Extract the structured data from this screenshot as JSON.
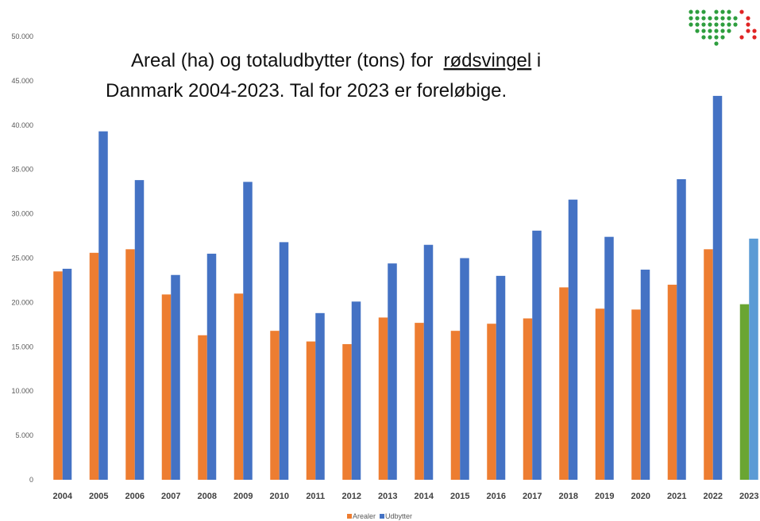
{
  "chart_data": {
    "type": "bar",
    "title": [
      "Areal (ha) og totaludbytter (tons) for  ",
      "rødsvingel",
      " i",
      "Danmark 2004-2023. Tal for 2023 er foreløbige."
    ],
    "categories": [
      "2004",
      "2005",
      "2006",
      "2007",
      "2008",
      "2009",
      "2010",
      "2011",
      "2012",
      "2013",
      "2014",
      "2015",
      "2016",
      "2017",
      "2018",
      "2019",
      "2020",
      "2021",
      "2022",
      "2023"
    ],
    "series": [
      {
        "name": "Arealer",
        "color": "#ed7d31",
        "colors": [
          "#ed7d31",
          "#ed7d31",
          "#ed7d31",
          "#ed7d31",
          "#ed7d31",
          "#ed7d31",
          "#ed7d31",
          "#ed7d31",
          "#ed7d31",
          "#ed7d31",
          "#ed7d31",
          "#ed7d31",
          "#ed7d31",
          "#ed7d31",
          "#ed7d31",
          "#ed7d31",
          "#ed7d31",
          "#ed7d31",
          "#ed7d31",
          "#6aa532"
        ],
        "values": [
          23500,
          25600,
          26000,
          20900,
          16300,
          21000,
          16800,
          15600,
          15300,
          18300,
          17700,
          16800,
          17600,
          18200,
          21700,
          19300,
          19200,
          22000,
          26000,
          19800
        ]
      },
      {
        "name": "Udbytter",
        "color": "#4472c4",
        "colors": [
          "#4472c4",
          "#4472c4",
          "#4472c4",
          "#4472c4",
          "#4472c4",
          "#4472c4",
          "#4472c4",
          "#4472c4",
          "#4472c4",
          "#4472c4",
          "#4472c4",
          "#4472c4",
          "#4472c4",
          "#4472c4",
          "#4472c4",
          "#4472c4",
          "#4472c4",
          "#4472c4",
          "#4472c4",
          "#5b9bd5"
        ],
        "values": [
          23800,
          39300,
          33800,
          23100,
          25500,
          33600,
          26800,
          18800,
          20100,
          24400,
          26500,
          25000,
          23000,
          28100,
          31600,
          27400,
          23700,
          33900,
          43300,
          27200
        ]
      }
    ],
    "ylim": [
      0,
      50000
    ],
    "yticks": [
      0,
      {
        "value": 5000,
        "label": "5.000"
      },
      {
        "value": 10000,
        "label": "10.000"
      },
      {
        "value": 15000,
        "label": "15.000"
      },
      {
        "value": 20000,
        "label": "20.000"
      },
      {
        "value": 25000,
        "label": "25.000"
      },
      {
        "value": 30000,
        "label": "30.000"
      },
      {
        "value": 35000,
        "label": "35.000"
      },
      {
        "value": 40000,
        "label": "40.000"
      },
      {
        "value": 45000,
        "label": "45.000"
      },
      {
        "value": 50000,
        "label": "50.000"
      }
    ],
    "grid": false,
    "legend": "bottom"
  }
}
